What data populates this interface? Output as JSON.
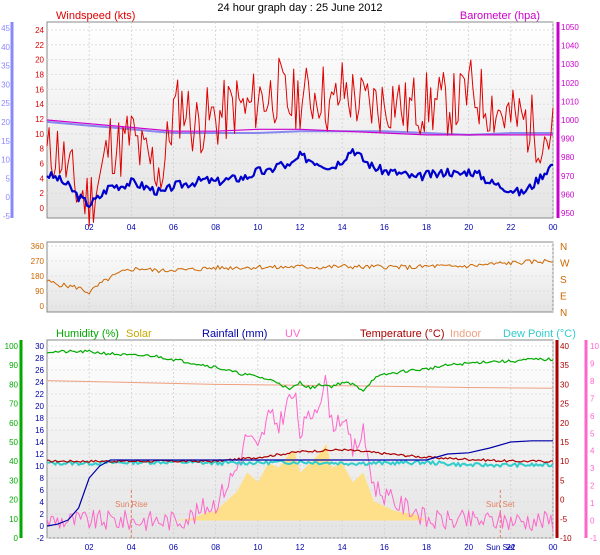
{
  "title": "24 hour graph day : 25 June 2012",
  "colors": {
    "wind": "#e00000",
    "wind_avg": "#0000cc",
    "barometer": "#cc00cc",
    "barometer_line": "#8888ee",
    "direction": "#cc6600",
    "humidity": "#00aa00",
    "solar": "#c8a800",
    "solar_fill": "#ffe08a",
    "rainfall": "#0000aa",
    "uv": "#ff66cc",
    "temperature": "#aa0000",
    "indoor": "#f0a080",
    "dewpoint": "#33cccc",
    "left_axis": "#8888ff",
    "hum_axis": "#00aa00",
    "uv_axis": "#ff66cc",
    "sun_marker": "#e08060"
  },
  "x_ticks": [
    "02",
    "04",
    "06",
    "08",
    "10",
    "12",
    "14",
    "16",
    "18",
    "20",
    "22",
    "00"
  ],
  "chart_data": [
    {
      "id": "wind",
      "type": "line",
      "title_left": "Windspeed (kts)",
      "title_right": "Barometer (hpa)",
      "left_ticks": [
        "-5",
        "0",
        "5",
        "10",
        "15",
        "20",
        "25",
        "30",
        "35",
        "40",
        "45"
      ],
      "inner_ticks": [
        "0",
        "2",
        "4",
        "6",
        "8",
        "10",
        "12",
        "14",
        "16",
        "18",
        "20",
        "22",
        "24"
      ],
      "right_ticks": [
        "950",
        "960",
        "970",
        "980",
        "990",
        "1000",
        "1010",
        "1020",
        "1030",
        "1040",
        "1050"
      ],
      "ylim_kts": [
        0,
        25
      ],
      "ylim_hpa": [
        950,
        1050
      ],
      "series": [
        {
          "key": "gust",
          "x": [
            0,
            0.5,
            1,
            1.5,
            2,
            2.5,
            3,
            3.5,
            4,
            4.5,
            5,
            5.5,
            6,
            6.5,
            7,
            7.5,
            8,
            8.5,
            9,
            9.5,
            10,
            10.5,
            11,
            11.5,
            12,
            12.5,
            13,
            13.5,
            14,
            14.5,
            15,
            15.5,
            16,
            16.5,
            17,
            17.5,
            18,
            18.5,
            19,
            19.5,
            20,
            20.5,
            21,
            21.5,
            22,
            22.5,
            23,
            23.5,
            24
          ],
          "values": [
            7,
            8,
            5,
            2,
            1,
            4,
            9,
            8,
            10,
            7,
            6,
            5,
            13,
            14,
            11,
            12,
            12,
            13,
            14,
            13,
            15,
            15,
            16,
            14,
            15,
            15,
            16,
            13,
            16,
            15,
            14,
            14,
            14,
            15,
            13,
            14,
            14,
            14,
            14,
            14,
            16,
            15,
            14,
            13,
            12,
            12,
            11,
            10,
            10
          ]
        },
        {
          "key": "avg",
          "x": [
            0,
            0.5,
            1,
            1.5,
            2,
            2.5,
            3,
            3.5,
            4,
            4.5,
            5,
            5.5,
            6,
            6.5,
            7,
            7.5,
            8,
            8.5,
            9,
            9.5,
            10,
            10.5,
            11,
            11.5,
            12,
            12.5,
            13,
            13.5,
            14,
            14.5,
            15,
            15.5,
            16,
            16.5,
            17,
            17.5,
            18,
            18.5,
            19,
            19.5,
            20,
            20.5,
            21,
            21.5,
            22,
            22.5,
            23,
            23.5,
            24
          ],
          "values": [
            4.5,
            4,
            3,
            1.5,
            0.5,
            1.5,
            3,
            3,
            3.5,
            3,
            2.5,
            2,
            3,
            3.2,
            3.5,
            3.8,
            3.5,
            3.8,
            4,
            4.2,
            5,
            4.8,
            6,
            5.5,
            7,
            6.5,
            6,
            5.5,
            6.5,
            8,
            6.5,
            5.5,
            5,
            4.8,
            4.5,
            4,
            4.5,
            4.5,
            5,
            4.5,
            5,
            4.5,
            3.5,
            3,
            2.5,
            2,
            3,
            4.5,
            6
          ]
        },
        {
          "key": "barometer",
          "x": [
            0,
            2,
            4,
            6,
            8,
            10,
            12,
            14,
            16,
            18,
            20,
            22,
            24
          ],
          "values": [
            1000,
            998,
            996,
            994,
            994,
            995,
            995,
            994,
            993,
            992,
            992,
            992,
            992
          ]
        },
        {
          "key": "barometer_trend",
          "x": [
            0,
            1,
            2,
            3,
            4,
            5,
            6,
            8,
            10,
            12,
            14,
            16,
            18,
            20,
            22,
            24
          ],
          "values": [
            999,
            998,
            997,
            996,
            995,
            994,
            993,
            993,
            993,
            994,
            994,
            994,
            993,
            992,
            993,
            993
          ]
        }
      ]
    },
    {
      "id": "direction",
      "type": "line",
      "left_ticks": [
        "0",
        "90",
        "180",
        "270",
        "360"
      ],
      "right_labels": [
        "N",
        "W",
        "S",
        "E",
        "N"
      ],
      "ylim": [
        0,
        360
      ],
      "series": [
        {
          "key": "direction",
          "x": [
            0,
            0.5,
            1,
            1.5,
            2,
            2.5,
            3,
            3.5,
            4,
            4.5,
            5,
            5.5,
            6,
            6.5,
            7,
            7.5,
            8,
            8.5,
            9,
            9.5,
            10,
            10.5,
            11,
            11.5,
            12,
            12.5,
            13,
            13.5,
            14,
            14.5,
            15,
            15.5,
            16,
            16.5,
            17,
            17.5,
            18,
            18.5,
            19,
            19.5,
            20,
            20.5,
            21,
            21.5,
            22,
            22.5,
            23,
            23.5,
            24
          ],
          "values": [
            150,
            130,
            120,
            110,
            80,
            130,
            170,
            200,
            220,
            225,
            215,
            210,
            220,
            215,
            220,
            225,
            230,
            228,
            232,
            230,
            235,
            233,
            230,
            235,
            236,
            234,
            232,
            235,
            238,
            236,
            233,
            235,
            236,
            234,
            232,
            233,
            238,
            240,
            236,
            238,
            240,
            245,
            250,
            255,
            258,
            262,
            265,
            268,
            270
          ]
        }
      ]
    },
    {
      "id": "climate",
      "type": "line",
      "legend": [
        "Humidity (%)",
        "Solar",
        "Rainfall (mm)",
        "UV",
        "Temperature (°C)",
        "Indoor",
        "Dew Point (°C)"
      ],
      "hum_ticks": [
        "0",
        "10",
        "20",
        "30",
        "40",
        "50",
        "60",
        "70",
        "80",
        "90",
        "100"
      ],
      "rain_ticks": [
        "-2",
        "0",
        "2",
        "4",
        "6",
        "8",
        "10",
        "12",
        "14",
        "16",
        "18",
        "20",
        "22",
        "24",
        "26",
        "28",
        "30"
      ],
      "temp_ticks": [
        "-10",
        "-5",
        "0",
        "5",
        "10",
        "15",
        "20",
        "25",
        "30",
        "35",
        "40"
      ],
      "uv_ticks": [
        "-1",
        "0",
        "1",
        "2",
        "3",
        "4",
        "5",
        "6",
        "7",
        "8",
        "9",
        "10"
      ],
      "sun_rise": "Sun Rise",
      "sun_set": "Sun Set",
      "series": [
        {
          "key": "humidity",
          "x": [
            0,
            1,
            2,
            3,
            4,
            5,
            6,
            7,
            8,
            9,
            10,
            11,
            11.5,
            12,
            12.5,
            13,
            13.5,
            14,
            14.5,
            15,
            15.5,
            16,
            17,
            18,
            19,
            20,
            21,
            22,
            23,
            24
          ],
          "values": [
            97,
            97,
            97,
            96,
            95,
            95,
            93,
            91,
            89,
            86,
            84,
            81,
            77,
            81,
            78,
            80,
            79,
            81,
            80,
            77,
            83,
            85,
            87,
            88,
            90,
            91,
            92,
            92,
            93,
            93
          ]
        },
        {
          "key": "temperature",
          "x": [
            0,
            2,
            4,
            6,
            8,
            10,
            12,
            14,
            16,
            18,
            20,
            22,
            24
          ],
          "values": [
            10,
            10,
            10,
            10,
            10,
            11,
            12.5,
            13,
            12,
            11,
            10.5,
            10,
            10
          ]
        },
        {
          "key": "indoor",
          "x": [
            0,
            4,
            8,
            12,
            16,
            20,
            24
          ],
          "values": [
            31,
            30.5,
            30,
            29.8,
            29.5,
            29.2,
            29
          ]
        },
        {
          "key": "dewpoint",
          "x": [
            0,
            2,
            4,
            6,
            8,
            10,
            12,
            14,
            16,
            18,
            20,
            22,
            24
          ],
          "values": [
            9.5,
            9.5,
            9.7,
            9.8,
            9.5,
            9.6,
            9.8,
            9.5,
            9.5,
            9.7,
            9,
            9,
            9
          ]
        },
        {
          "key": "rainfall",
          "x": [
            0,
            0.5,
            1,
            1.5,
            2,
            2.5,
            3,
            18,
            19,
            20,
            21,
            22,
            23,
            24
          ],
          "values": [
            0,
            0.3,
            1,
            3,
            8,
            10,
            11,
            11,
            12,
            12.2,
            13,
            14,
            14.2,
            14.2
          ]
        },
        {
          "key": "solar_uv",
          "x": [
            0,
            6,
            7,
            7.5,
            8,
            8.5,
            9,
            9.5,
            10,
            10.5,
            11,
            11.5,
            11.75,
            12,
            12.5,
            13,
            13.25,
            13.5,
            14,
            14.5,
            15,
            15.5,
            16,
            16.5,
            17,
            17.5,
            18,
            24
          ],
          "values": [
            0,
            0,
            0.3,
            0.8,
            1,
            2,
            3,
            5,
            4,
            6,
            5.5,
            7,
            7.2,
            5,
            6,
            7.2,
            8,
            5.5,
            6,
            4,
            5,
            2,
            1.5,
            1,
            0.8,
            0.6,
            0,
            0
          ]
        }
      ]
    }
  ]
}
